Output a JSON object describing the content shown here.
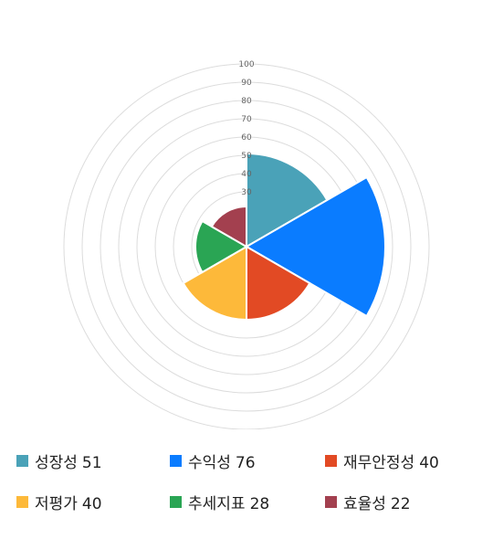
{
  "chart_data": {
    "type": "polar-area",
    "scale": {
      "min": 0,
      "max": 100,
      "ticks": [
        30,
        40,
        50,
        60,
        70,
        80,
        90,
        100
      ]
    },
    "grid": true,
    "legend_position": "bottom",
    "categories": [
      "성장성",
      "수익성",
      "재무안정성",
      "저평가",
      "추세지표",
      "효율성"
    ],
    "values": [
      51,
      76,
      40,
      40,
      28,
      22
    ],
    "colors": [
      "#4aa2b8",
      "#0a7cff",
      "#e24a24",
      "#fdb93a",
      "#2aa554",
      "#a3404f"
    ]
  },
  "legend": [
    {
      "name": "성장성",
      "value": "51",
      "color": "#4aa2b8"
    },
    {
      "name": "수익성",
      "value": "76",
      "color": "#0a7cff"
    },
    {
      "name": "재무안정성",
      "value": "40",
      "color": "#e24a24"
    },
    {
      "name": "저평가",
      "value": "40",
      "color": "#fdb93a"
    },
    {
      "name": "추세지표",
      "value": "28",
      "color": "#2aa554"
    },
    {
      "name": "효율성",
      "value": "22",
      "color": "#a3404f"
    }
  ]
}
